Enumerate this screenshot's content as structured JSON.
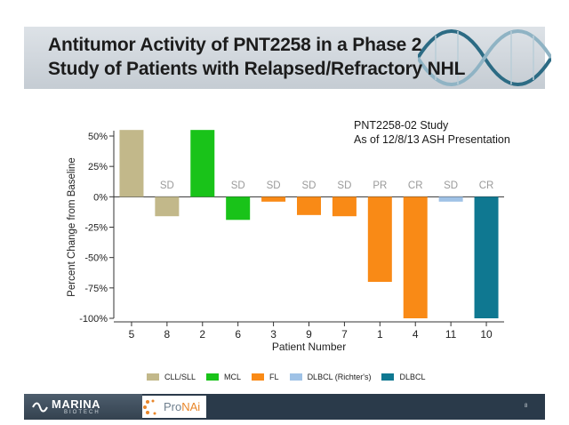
{
  "slide": {
    "title_line1": "Antitumor Activity of PNT2258 in a Phase 2",
    "title_line2": "Study of Patients with Relapsed/Refractory NHL",
    "annotation_line1": "PNT2258-02 Study",
    "annotation_line2": "As of 12/8/13 ASH Presentation",
    "page_number": "8"
  },
  "footer": {
    "marina_name": "MARINA",
    "marina_sub": "BIOTECH",
    "pronai_a": "Pro",
    "pronai_b": "NAi"
  },
  "colors": {
    "CLL/SLL": "#c2b88a",
    "MCL": "#19c319",
    "FL": "#f98a16",
    "DLBCL (Richter's)": "#9fc2e6",
    "DLBCL": "#0f7891"
  },
  "chart_data": {
    "type": "bar",
    "xlabel": "Patient Number",
    "ylabel": "Percent Change from Baseline",
    "ylim": [
      -100,
      50
    ],
    "yticks": [
      50,
      25,
      0,
      -25,
      -50,
      -75,
      -100
    ],
    "ytick_labels": [
      "50%",
      "25%",
      "0%",
      "-25%",
      "-50%",
      "-75%",
      "-100%"
    ],
    "categories": [
      "5",
      "8",
      "2",
      "6",
      "3",
      "9",
      "7",
      "1",
      "4",
      "11",
      "10"
    ],
    "values": [
      55,
      -16,
      55,
      -19,
      -4,
      -15,
      -16,
      -70,
      -100,
      -4,
      -100
    ],
    "groups": [
      "CLL/SLL",
      "CLL/SLL",
      "MCL",
      "MCL",
      "FL",
      "FL",
      "FL",
      "FL",
      "FL",
      "DLBCL (Richter's)",
      "DLBCL"
    ],
    "responses": [
      "",
      "SD",
      "",
      "SD",
      "SD",
      "SD",
      "SD",
      "PR",
      "CR",
      "SD",
      "CR"
    ],
    "legend": [
      "CLL/SLL",
      "MCL",
      "FL",
      "DLBCL (Richter's)",
      "DLBCL"
    ],
    "legend_position": "bottom"
  }
}
